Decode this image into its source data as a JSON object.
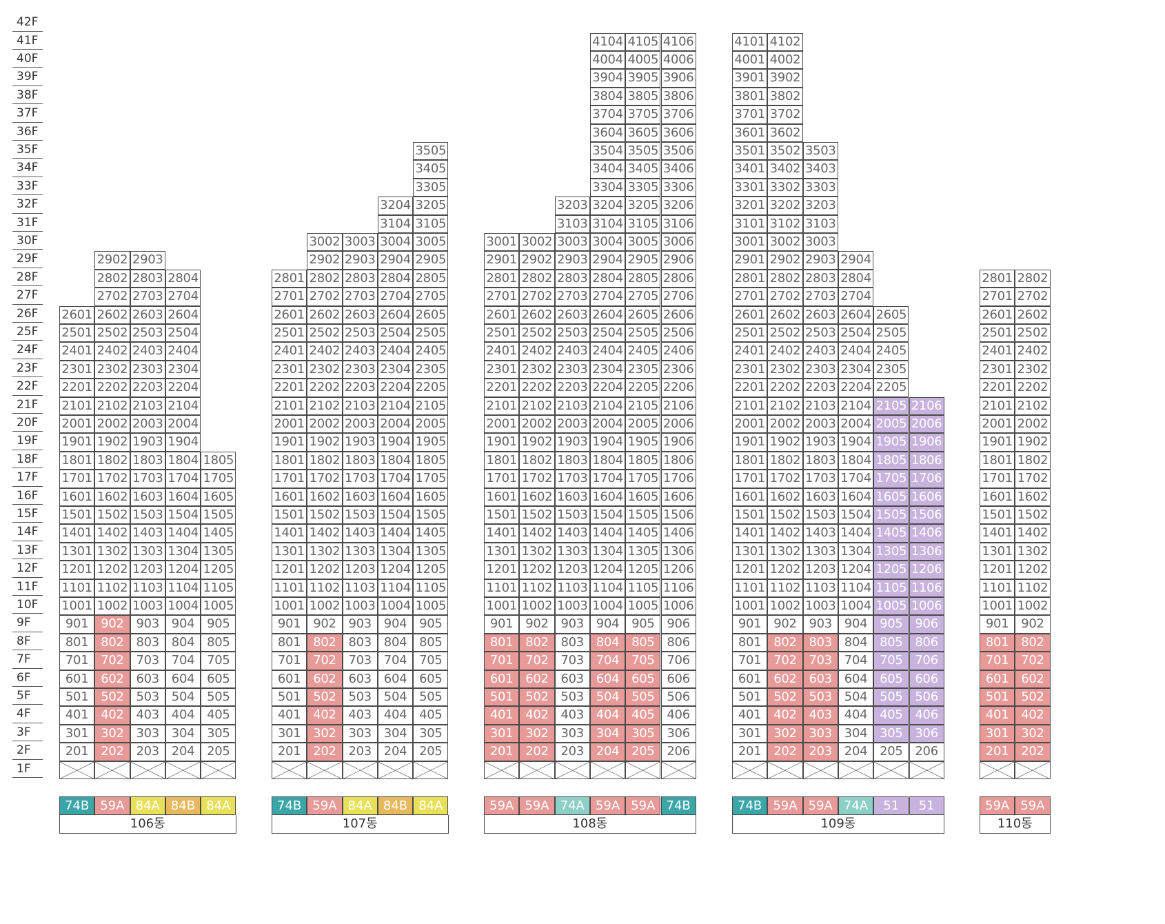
{
  "floors": {
    "min": 1,
    "max": 42
  },
  "floor_labels": [
    "1F",
    "2F",
    "3F",
    "4F",
    "5F",
    "6F",
    "7F",
    "8F",
    "9F",
    "10F",
    "11F",
    "12F",
    "13F",
    "14F",
    "15F",
    "16F",
    "17F",
    "18F",
    "19F",
    "20F",
    "21F",
    "22F",
    "23F",
    "24F",
    "25F",
    "26F",
    "27F",
    "28F",
    "29F",
    "30F",
    "31F",
    "32F",
    "33F",
    "34F",
    "35F",
    "36F",
    "37F",
    "38F",
    "39F",
    "40F",
    "41F",
    "42F"
  ],
  "colors": {
    "74B": "#3aa6a8",
    "59A": "#e89a98",
    "84A": "#e9e05a",
    "84B": "#e8b85c",
    "74A": "#8ccfc6",
    "51": "#c7b3de",
    "highlight_red": "#e89a98",
    "highlight_purple": "#c7b3de"
  },
  "buildings": [
    {
      "name": "106동",
      "lines": [
        {
          "line": 1,
          "type": "74B",
          "top": 26
        },
        {
          "line": 2,
          "type": "59A",
          "top": 29
        },
        {
          "line": 3,
          "type": "84A",
          "top": 29
        },
        {
          "line": 4,
          "type": "84B",
          "top": 28
        },
        {
          "line": 5,
          "type": "84A",
          "top": 18
        }
      ],
      "red": [
        "902",
        "802",
        "702",
        "602",
        "502",
        "402",
        "302",
        "202"
      ],
      "purple": []
    },
    {
      "name": "107동",
      "lines": [
        {
          "line": 1,
          "type": "74B",
          "top": 28
        },
        {
          "line": 2,
          "type": "59A",
          "top": 30
        },
        {
          "line": 3,
          "type": "84A",
          "top": 30
        },
        {
          "line": 4,
          "type": "84B",
          "top": 32
        },
        {
          "line": 5,
          "type": "84A",
          "top": 35
        }
      ],
      "red": [
        "802",
        "702",
        "602",
        "502",
        "402",
        "302",
        "202"
      ],
      "purple": []
    },
    {
      "name": "108동",
      "lines": [
        {
          "line": 1,
          "type": "59A",
          "top": 30
        },
        {
          "line": 2,
          "type": "59A",
          "top": 30
        },
        {
          "line": 3,
          "type": "74A",
          "top": 32
        },
        {
          "line": 4,
          "type": "59A",
          "top": 41
        },
        {
          "line": 5,
          "type": "59A",
          "top": 41
        },
        {
          "line": 6,
          "type": "74B",
          "top": 41
        }
      ],
      "red": [
        "801",
        "802",
        "804",
        "805",
        "701",
        "702",
        "704",
        "705",
        "601",
        "602",
        "604",
        "605",
        "501",
        "502",
        "504",
        "505",
        "401",
        "402",
        "404",
        "405",
        "301",
        "302",
        "304",
        "305",
        "201",
        "202",
        "204",
        "205"
      ],
      "purple": []
    },
    {
      "name": "109동",
      "lines": [
        {
          "line": 1,
          "type": "74B",
          "top": 41
        },
        {
          "line": 2,
          "type": "59A",
          "top": 41
        },
        {
          "line": 3,
          "type": "59A",
          "top": 35
        },
        {
          "line": 4,
          "type": "74A",
          "top": 29
        },
        {
          "line": 5,
          "type": "51",
          "top": 26
        },
        {
          "line": 6,
          "type": "51",
          "top": 21
        }
      ],
      "red": [
        "802",
        "803",
        "702",
        "703",
        "602",
        "603",
        "502",
        "503",
        "402",
        "403",
        "302",
        "303",
        "202",
        "203"
      ],
      "purple": [
        "2105",
        "2106",
        "2005",
        "2006",
        "1905",
        "1906",
        "1805",
        "1806",
        "1705",
        "1706",
        "1605",
        "1606",
        "1505",
        "1506",
        "1405",
        "1406",
        "1305",
        "1306",
        "1205",
        "1206",
        "1105",
        "1106",
        "1005",
        "1006",
        "905",
        "906",
        "805",
        "806",
        "705",
        "706",
        "605",
        "606",
        "505",
        "506",
        "405",
        "406",
        "305",
        "306"
      ]
    },
    {
      "name": "110동",
      "lines": [
        {
          "line": 1,
          "type": "59A",
          "top": 28
        },
        {
          "line": 2,
          "type": "59A",
          "top": 28
        }
      ],
      "red": [
        "801",
        "802",
        "701",
        "702",
        "601",
        "602",
        "501",
        "502",
        "401",
        "402",
        "301",
        "302",
        "201",
        "202"
      ],
      "purple": []
    }
  ]
}
